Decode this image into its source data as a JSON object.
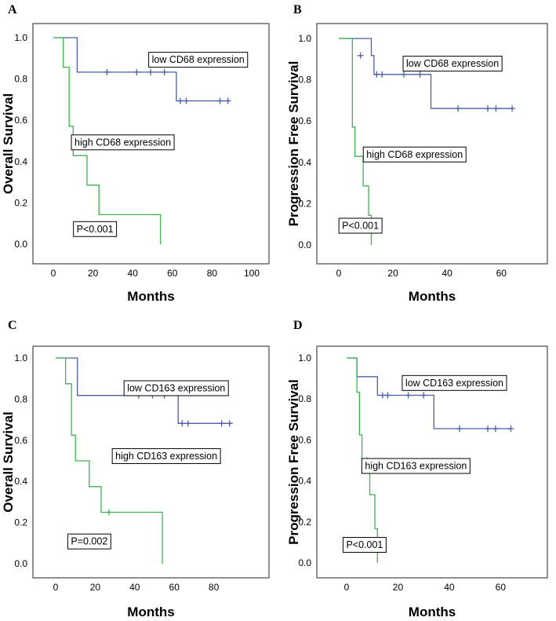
{
  "chart_data": [
    {
      "panel": "A",
      "type": "line",
      "step": true,
      "xlabel": "Months",
      "ylabel": "Overall Survival",
      "xlim": [
        0,
        100
      ],
      "ylim": [
        0,
        1
      ],
      "xticks": [
        0,
        20,
        40,
        60,
        80,
        100
      ],
      "yticks": [
        "0.0",
        "0.2",
        "0.4",
        "0.6",
        "0.8",
        "1.0"
      ],
      "pvalue": "P<0.001",
      "series": [
        {
          "name": "low CD68 expression",
          "display_text": "low CD68 expression",
          "color": "#4a5fa8",
          "steps": [
            [
              0,
              1.0
            ],
            [
              12,
              1.0
            ],
            [
              12,
              0.833
            ],
            [
              62,
              0.833
            ],
            [
              62,
              0.694
            ],
            [
              89,
              0.694
            ]
          ],
          "censored": [
            [
              27,
              0.833
            ],
            [
              42,
              0.833
            ],
            [
              49,
              0.833
            ],
            [
              56,
              0.833
            ],
            [
              64,
              0.694
            ],
            [
              67,
              0.694
            ],
            [
              84,
              0.694
            ],
            [
              88,
              0.694
            ]
          ],
          "label_at": [
            73,
            0.895
          ]
        },
        {
          "name": "high CD68 expression",
          "display_text": "high CD68 expression",
          "color": "#3cb550",
          "steps": [
            [
              0,
              1.0
            ],
            [
              5,
              1.0
            ],
            [
              5,
              0.857
            ],
            [
              8,
              0.857
            ],
            [
              8,
              0.571
            ],
            [
              10,
              0.571
            ],
            [
              10,
              0.429
            ],
            [
              17,
              0.429
            ],
            [
              17,
              0.286
            ],
            [
              23,
              0.286
            ],
            [
              23,
              0.143
            ],
            [
              54,
              0.143
            ],
            [
              54,
              0.0
            ]
          ],
          "censored": [],
          "label_at": [
            35,
            0.495
          ]
        }
      ],
      "pvalue_at": [
        21,
        0.075
      ]
    },
    {
      "panel": "B",
      "type": "line",
      "step": true,
      "xlabel": "Months",
      "ylabel": "Progression Free Survival",
      "xlim": [
        0,
        66
      ],
      "ylim": [
        0,
        1
      ],
      "xticks": [
        0,
        20,
        40,
        60
      ],
      "yticks": [
        "0.0",
        "0.2",
        "0.4",
        "0.6",
        "0.8",
        "1.0"
      ],
      "pvalue": "P<0.001",
      "series": [
        {
          "name": "low CD68 expression",
          "display_text": "low CD68 expression",
          "color": "#4a5fa8",
          "steps": [
            [
              0,
              1.0
            ],
            [
              12,
              1.0
            ],
            [
              12,
              0.917
            ],
            [
              13,
              0.917
            ],
            [
              13,
              0.826
            ],
            [
              34,
              0.826
            ],
            [
              34,
              0.661
            ],
            [
              64,
              0.661
            ]
          ],
          "censored": [
            [
              8,
              0.917
            ],
            [
              14,
              0.826
            ],
            [
              16,
              0.826
            ],
            [
              24,
              0.826
            ],
            [
              30,
              0.826
            ],
            [
              44,
              0.661
            ],
            [
              55,
              0.661
            ],
            [
              58,
              0.661
            ],
            [
              64,
              0.661
            ]
          ],
          "label_at": [
            42,
            0.88
          ]
        },
        {
          "name": "high CD68 expression",
          "display_text": "high CD68 expression",
          "color": "#3cb550",
          "steps": [
            [
              0,
              1.0
            ],
            [
              5,
              1.0
            ],
            [
              5,
              0.571
            ],
            [
              6,
              0.571
            ],
            [
              6,
              0.429
            ],
            [
              9,
              0.429
            ],
            [
              9,
              0.286
            ],
            [
              11,
              0.286
            ],
            [
              11,
              0.143
            ],
            [
              12,
              0.143
            ],
            [
              12,
              0.0
            ]
          ],
          "censored": [],
          "label_at": [
            28,
            0.44
          ]
        }
      ],
      "pvalue_at": [
        8,
        0.095
      ]
    },
    {
      "panel": "C",
      "type": "line",
      "step": true,
      "xlabel": "Months",
      "ylabel": "Overall Survival",
      "xlim": [
        0,
        100
      ],
      "ylim": [
        0,
        1
      ],
      "xticks": [
        0,
        20,
        40,
        60,
        80
      ],
      "yticks": [
        "0.0",
        "0.2",
        "0.4",
        "0.6",
        "0.8",
        "1.0"
      ],
      "pvalue": "P=0.002",
      "series": [
        {
          "name": "low CD163 expression",
          "display_text": "low CD163 expression",
          "color": "#4a5fa8",
          "steps": [
            [
              0,
              1.0
            ],
            [
              11,
              1.0
            ],
            [
              11,
              0.818
            ],
            [
              62,
              0.818
            ],
            [
              62,
              0.682
            ],
            [
              89,
              0.682
            ]
          ],
          "censored": [
            [
              42,
              0.818
            ],
            [
              49,
              0.818
            ],
            [
              55,
              0.818
            ],
            [
              64,
              0.682
            ],
            [
              67,
              0.682
            ],
            [
              84,
              0.682
            ],
            [
              88,
              0.682
            ]
          ],
          "label_at": [
            61,
            0.855
          ]
        },
        {
          "name": "high CD163 expression",
          "display_text": "high CD163 expression",
          "color": "#3cb550",
          "steps": [
            [
              0,
              1.0
            ],
            [
              5,
              1.0
            ],
            [
              5,
              0.875
            ],
            [
              8,
              0.875
            ],
            [
              8,
              0.625
            ],
            [
              10,
              0.625
            ],
            [
              10,
              0.5
            ],
            [
              17,
              0.5
            ],
            [
              17,
              0.375
            ],
            [
              23,
              0.375
            ],
            [
              23,
              0.25
            ],
            [
              54,
              0.25
            ],
            [
              54,
              0.0
            ]
          ],
          "censored": [
            [
              27,
              0.25
            ]
          ],
          "label_at": [
            56,
            0.525
          ]
        }
      ],
      "pvalue_at": [
        17,
        0.11
      ]
    },
    {
      "panel": "D",
      "type": "line",
      "step": true,
      "xlabel": "Months",
      "ylabel": "Progression Free Survival",
      "xlim": [
        0,
        66
      ],
      "ylim": [
        0,
        1
      ],
      "xticks": [
        0,
        20,
        40,
        60
      ],
      "yticks": [
        "0.0",
        "0.2",
        "0.4",
        "0.6",
        "0.8",
        "1.0"
      ],
      "pvalue": "P<0.001",
      "series": [
        {
          "name": "low CD163 expression",
          "display_text": "low CD163 expression",
          "color": "#4a5fa8",
          "steps": [
            [
              0,
              1.0
            ],
            [
              4,
              1.0
            ],
            [
              4,
              0.909
            ],
            [
              12,
              0.909
            ],
            [
              12,
              0.818
            ],
            [
              34,
              0.818
            ],
            [
              34,
              0.655
            ],
            [
              64,
              0.655
            ]
          ],
          "censored": [
            [
              14,
              0.818
            ],
            [
              16,
              0.818
            ],
            [
              24,
              0.818
            ],
            [
              30,
              0.818
            ],
            [
              44,
              0.655
            ],
            [
              55,
              0.655
            ],
            [
              58,
              0.655
            ],
            [
              64,
              0.655
            ]
          ],
          "label_at": [
            42,
            0.88
          ]
        },
        {
          "name": "high CD163 expression",
          "display_text": "high CD163 expression",
          "color": "#3cb550",
          "steps": [
            [
              0,
              1.0
            ],
            [
              4,
              1.0
            ],
            [
              4,
              0.833
            ],
            [
              5,
              0.833
            ],
            [
              5,
              0.625
            ],
            [
              6,
              0.625
            ],
            [
              6,
              0.5
            ],
            [
              9,
              0.5
            ],
            [
              9,
              0.333
            ],
            [
              11,
              0.333
            ],
            [
              11,
              0.167
            ],
            [
              12,
              0.167
            ],
            [
              12,
              0.0
            ]
          ],
          "censored": [
            [
              8,
              0.5
            ]
          ],
          "label_at": [
            27,
            0.475
          ]
        }
      ],
      "pvalue_at": [
        7,
        0.09
      ]
    }
  ]
}
